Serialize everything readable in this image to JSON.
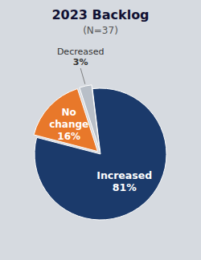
{
  "chart_data": {
    "type": "pie",
    "title": "2023 Backlog",
    "subtitle": "(N=37)",
    "categories": [
      "Increased",
      "No change",
      "Decreased"
    ],
    "values": [
      81,
      16,
      3
    ],
    "value_labels": [
      "81%",
      "16%",
      "3%"
    ],
    "colors": [
      "#1b3a6b",
      "#e8782a",
      "#b8bfc8"
    ],
    "data_labels": true
  }
}
